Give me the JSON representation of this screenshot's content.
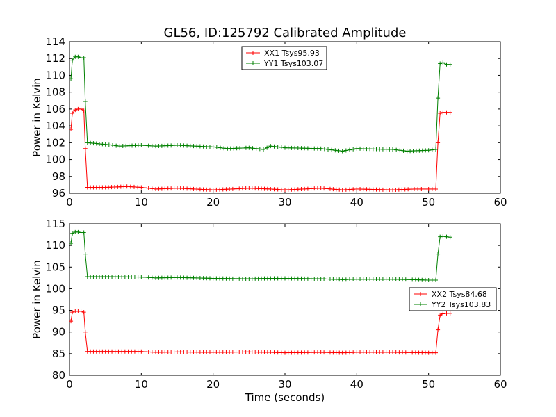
{
  "title": "GL56, ID:125792 Calibrated Amplitude",
  "colors": {
    "xx": "#ff0000",
    "yy": "#008000",
    "axis": "#000000",
    "background": "#ffffff"
  },
  "chart_data": [
    {
      "type": "line",
      "title": "GL56, ID:125792 Calibrated Amplitude",
      "xlabel": "",
      "ylabel": "Power in Kelvin",
      "xlim": [
        0,
        60
      ],
      "ylim": [
        96,
        114
      ],
      "xticks": [
        "0",
        "10",
        "20",
        "30",
        "40",
        "50",
        "60"
      ],
      "yticks": [
        "96",
        "98",
        "100",
        "102",
        "104",
        "106",
        "108",
        "110",
        "112",
        "114"
      ],
      "legend_position": "top-center",
      "grid": false,
      "markers": "plus",
      "series": [
        {
          "name": "XX1 Tsys95.93",
          "color": "#ff0000",
          "points": [
            [
              0.2,
              103.6
            ],
            [
              0.4,
              105.5
            ],
            [
              0.8,
              105.9
            ],
            [
              1.2,
              106.0
            ],
            [
              1.6,
              106.0
            ],
            [
              2.0,
              105.8
            ],
            [
              2.2,
              101.3
            ],
            [
              2.5,
              96.7
            ],
            [
              5,
              96.7
            ],
            [
              8,
              96.8
            ],
            [
              10,
              96.7
            ],
            [
              12,
              96.5
            ],
            [
              15,
              96.6
            ],
            [
              20,
              96.4
            ],
            [
              25,
              96.6
            ],
            [
              28,
              96.5
            ],
            [
              30,
              96.4
            ],
            [
              35,
              96.6
            ],
            [
              38,
              96.4
            ],
            [
              40,
              96.5
            ],
            [
              45,
              96.4
            ],
            [
              48,
              96.5
            ],
            [
              50,
              96.5
            ],
            [
              51.0,
              96.5
            ],
            [
              51.3,
              102.0
            ],
            [
              51.6,
              105.5
            ],
            [
              52.0,
              105.6
            ],
            [
              52.5,
              105.6
            ],
            [
              53.0,
              105.6
            ]
          ]
        },
        {
          "name": "YY1 Tsys103.07",
          "color": "#008000",
          "points": [
            [
              0.2,
              109.6
            ],
            [
              0.4,
              111.8
            ],
            [
              0.8,
              112.2
            ],
            [
              1.2,
              112.2
            ],
            [
              1.6,
              112.1
            ],
            [
              2.0,
              112.1
            ],
            [
              2.2,
              106.9
            ],
            [
              2.5,
              102.0
            ],
            [
              5,
              101.8
            ],
            [
              7,
              101.6
            ],
            [
              10,
              101.7
            ],
            [
              12,
              101.6
            ],
            [
              15,
              101.7
            ],
            [
              20,
              101.5
            ],
            [
              22,
              101.3
            ],
            [
              25,
              101.4
            ],
            [
              27,
              101.2
            ],
            [
              28,
              101.6
            ],
            [
              30,
              101.4
            ],
            [
              35,
              101.3
            ],
            [
              37,
              101.1
            ],
            [
              38,
              101.0
            ],
            [
              40,
              101.3
            ],
            [
              45,
              101.2
            ],
            [
              47,
              101.0
            ],
            [
              50,
              101.1
            ],
            [
              51.0,
              101.2
            ],
            [
              51.3,
              107.3
            ],
            [
              51.6,
              111.4
            ],
            [
              52.0,
              111.5
            ],
            [
              52.5,
              111.3
            ],
            [
              53.0,
              111.3
            ]
          ]
        }
      ]
    },
    {
      "type": "line",
      "title": "",
      "xlabel": "Time (seconds)",
      "ylabel": "Power in Kelvin",
      "xlim": [
        0,
        60
      ],
      "ylim": [
        80,
        115
      ],
      "xticks": [
        "0",
        "10",
        "20",
        "30",
        "40",
        "50",
        "60"
      ],
      "yticks": [
        "80",
        "85",
        "90",
        "95",
        "100",
        "105",
        "110",
        "115"
      ],
      "legend_position": "center-right",
      "grid": false,
      "markers": "plus",
      "series": [
        {
          "name": "XX2 Tsys84.68",
          "color": "#ff0000",
          "points": [
            [
              0.2,
              92.5
            ],
            [
              0.4,
              94.6
            ],
            [
              0.8,
              94.8
            ],
            [
              1.2,
              94.8
            ],
            [
              1.6,
              94.8
            ],
            [
              2.0,
              94.6
            ],
            [
              2.2,
              90.0
            ],
            [
              2.5,
              85.5
            ],
            [
              5,
              85.5
            ],
            [
              10,
              85.5
            ],
            [
              12,
              85.3
            ],
            [
              15,
              85.4
            ],
            [
              20,
              85.3
            ],
            [
              25,
              85.4
            ],
            [
              28,
              85.3
            ],
            [
              30,
              85.2
            ],
            [
              35,
              85.3
            ],
            [
              38,
              85.2
            ],
            [
              40,
              85.3
            ],
            [
              45,
              85.3
            ],
            [
              50,
              85.2
            ],
            [
              51.0,
              85.2
            ],
            [
              51.3,
              90.5
            ],
            [
              51.6,
              93.9
            ],
            [
              52.0,
              94.2
            ],
            [
              52.5,
              94.3
            ],
            [
              53.0,
              94.3
            ]
          ]
        },
        {
          "name": "YY2 Tsys103.83",
          "color": "#008000",
          "points": [
            [
              0.2,
              110.5
            ],
            [
              0.4,
              112.8
            ],
            [
              0.8,
              113.1
            ],
            [
              1.2,
              113.1
            ],
            [
              1.6,
              113.0
            ],
            [
              2.0,
              113.0
            ],
            [
              2.2,
              108.0
            ],
            [
              2.5,
              102.8
            ],
            [
              5,
              102.8
            ],
            [
              10,
              102.7
            ],
            [
              12,
              102.5
            ],
            [
              15,
              102.6
            ],
            [
              20,
              102.4
            ],
            [
              25,
              102.3
            ],
            [
              28,
              102.4
            ],
            [
              30,
              102.4
            ],
            [
              35,
              102.3
            ],
            [
              38,
              102.1
            ],
            [
              40,
              102.2
            ],
            [
              45,
              102.2
            ],
            [
              50,
              102.0
            ],
            [
              51.0,
              102.0
            ],
            [
              51.3,
              108.0
            ],
            [
              51.6,
              112.0
            ],
            [
              52.0,
              112.1
            ],
            [
              52.5,
              112.0
            ],
            [
              53.0,
              111.9
            ]
          ]
        }
      ]
    }
  ]
}
